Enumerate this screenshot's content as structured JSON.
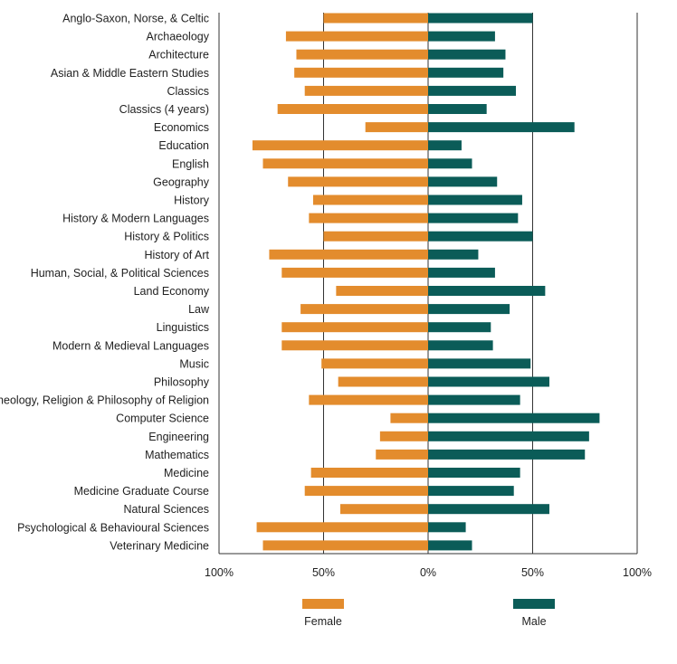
{
  "chart_data": {
    "type": "bar",
    "orientation": "horizontal-diverging",
    "categories": [
      "Anglo-Saxon, Norse, & Celtic",
      "Archaeology",
      "Architecture",
      "Asian & Middle Eastern Studies",
      "Classics",
      "Classics (4 years)",
      "Economics",
      "Education",
      "English",
      "Geography",
      "History",
      "History & Modern Languages",
      "History & Politics",
      "History of Art",
      "Human, Social, & Political Sciences",
      "Land Economy",
      "Law",
      "Linguistics",
      "Modern & Medieval Languages",
      "Music",
      "Philosophy",
      "Theology, Religion & Philosophy of Religion",
      "Computer Science",
      "Engineering",
      "Mathematics",
      "Medicine",
      "Medicine Graduate Course",
      "Natural Sciences",
      "Psychological & Behavioural Sciences",
      "Veterinary Medicine"
    ],
    "series": [
      {
        "name": "Female",
        "color": "#e38c2d",
        "values": [
          50,
          68,
          63,
          64,
          59,
          72,
          30,
          84,
          79,
          67,
          55,
          57,
          50,
          76,
          70,
          44,
          61,
          70,
          70,
          51,
          43,
          57,
          18,
          23,
          25,
          56,
          59,
          42,
          82,
          79
        ]
      },
      {
        "name": "Male",
        "color": "#0b5c58",
        "values": [
          50,
          32,
          37,
          36,
          42,
          28,
          70,
          16,
          21,
          33,
          45,
          43,
          50,
          24,
          32,
          56,
          39,
          30,
          31,
          49,
          58,
          44,
          82,
          77,
          75,
          44,
          41,
          58,
          18,
          21
        ]
      }
    ],
    "xlim": [
      -100,
      100
    ],
    "x_ticks": [
      -100,
      -50,
      0,
      50,
      100
    ],
    "x_tick_labels": [
      "100%",
      "50%",
      "0%",
      "50%",
      "100%"
    ],
    "title": "",
    "xlabel": "",
    "ylabel": "",
    "grid": "vertical lines at 100%, 50%, 0%, 50%, 100%",
    "legend_position": "bottom-center"
  }
}
